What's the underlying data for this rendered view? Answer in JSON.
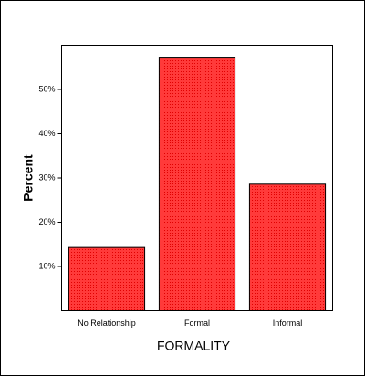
{
  "chart_data": {
    "type": "bar",
    "x_label": "FORMALITY",
    "y_label": "Percent",
    "categories": [
      "No Relationship",
      "Formal",
      "Informal"
    ],
    "values": [
      14.3,
      57.1,
      28.6
    ],
    "color": "#ff2b2b",
    "ylim": [
      0,
      60
    ],
    "yticks": [
      {
        "value": 10,
        "label": "10%"
      },
      {
        "value": 20,
        "label": "20%"
      },
      {
        "value": 30,
        "label": "30%"
      },
      {
        "value": 40,
        "label": "40%"
      },
      {
        "value": 50,
        "label": "50%"
      }
    ],
    "grid": false
  }
}
